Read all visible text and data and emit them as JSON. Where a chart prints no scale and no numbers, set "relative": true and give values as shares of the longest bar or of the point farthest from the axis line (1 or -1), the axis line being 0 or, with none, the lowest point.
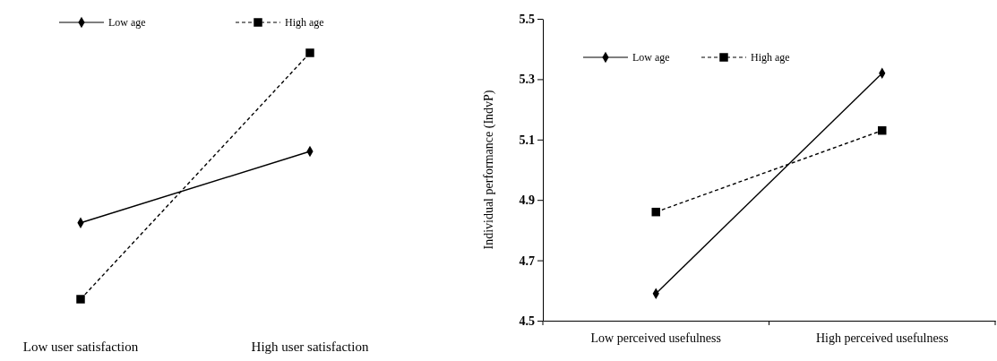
{
  "chart_data": [
    {
      "type": "line",
      "relative": true,
      "categories": [
        "Low user satisfaction",
        "High user satisfaction"
      ],
      "legend": "top",
      "series": [
        {
          "name": "Low age",
          "color": "#000000",
          "values": [
            0.31,
            0.6
          ],
          "marker": "diamond",
          "line_style": "solid"
        },
        {
          "name": "High age",
          "color": "#000000",
          "values": [
            0,
            1
          ],
          "marker": "square",
          "line_style": "dashed"
        }
      ]
    },
    {
      "type": "line",
      "ylabel": "Individual performance (IndvP)",
      "categories": [
        "Low perceived usefulness",
        "High perceived usefulness"
      ],
      "ylim": [
        4.5,
        5.5
      ],
      "yticks": [
        4.5,
        4.7,
        4.9,
        5.1,
        5.3,
        5.5
      ],
      "legend": "top left",
      "series": [
        {
          "name": "Low age",
          "color": "#000000",
          "values": [
            4.59,
            5.32
          ],
          "marker": "diamond",
          "line_style": "solid"
        },
        {
          "name": "High age",
          "color": "#000000",
          "values": [
            4.86,
            5.13
          ],
          "marker": "square",
          "line_style": "dashed"
        }
      ]
    }
  ]
}
